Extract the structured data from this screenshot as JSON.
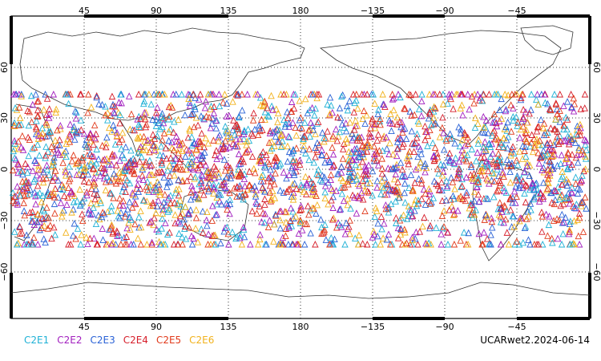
{
  "map": {
    "top_lon_labels": [
      "45",
      "90",
      "135",
      "180",
      "−135",
      "−90",
      "−45"
    ],
    "bottom_lon_labels": [
      "45",
      "90",
      "135",
      "180",
      "−135",
      "−90",
      "−45"
    ],
    "lat_labels": [
      "60",
      "30",
      "0",
      "−30",
      "−60"
    ],
    "obs_density_note": "dense tropical band of occultation triangles roughly between 45S and 45N"
  },
  "legend": {
    "items": [
      {
        "label": "C2E1",
        "color": "#1fb1d6"
      },
      {
        "label": "C2E2",
        "color": "#a21fbf"
      },
      {
        "label": "C2E3",
        "color": "#2a62d6"
      },
      {
        "label": "C2E4",
        "color": "#d61f2b"
      },
      {
        "label": "C2E5",
        "color": "#e13a1b"
      },
      {
        "label": "C2E6",
        "color": "#f2b21c"
      }
    ]
  },
  "caption": "UCARwet2.2024-06-14"
}
